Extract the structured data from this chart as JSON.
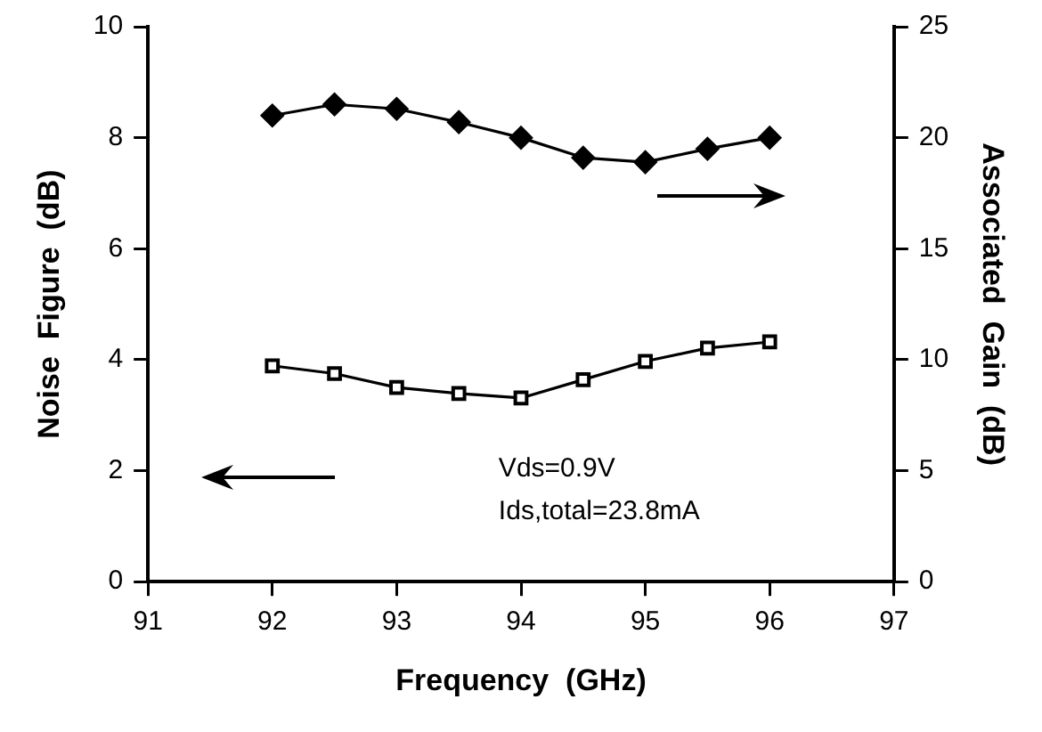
{
  "chart_data": {
    "type": "line",
    "xlabel": "Frequency  (GHz)",
    "ylabel": "Noise  Figure  (dB)",
    "y2label": "Associated  Gain  (dB)",
    "x": [
      92,
      92.5,
      93,
      93.5,
      94,
      94.5,
      95,
      95.5,
      96
    ],
    "xlim": [
      91,
      97
    ],
    "xticks": [
      91,
      92,
      93,
      94,
      95,
      96,
      97
    ],
    "ylim": [
      0,
      10
    ],
    "yticks": [
      0,
      2,
      4,
      6,
      8,
      10
    ],
    "y2lim": [
      0,
      25
    ],
    "y2ticks": [
      0,
      5,
      10,
      15,
      20,
      25
    ],
    "series": [
      {
        "color": "#000000",
        "marker": "diamond",
        "axis": "y2",
        "values": [
          21.0,
          21.5,
          21.3,
          20.7,
          20.0,
          19.1,
          18.9,
          19.5,
          20.0
        ]
      },
      {
        "color": "#000000",
        "marker": "square",
        "values": [
          3.89,
          3.75,
          3.5,
          3.39,
          3.31,
          3.64,
          3.97,
          4.21,
          4.32
        ]
      }
    ],
    "annotations": [
      "Vds=0.9V",
      "Ids,total=23.8mA"
    ],
    "grid": false,
    "legend": false,
    "line_style": "solid"
  }
}
